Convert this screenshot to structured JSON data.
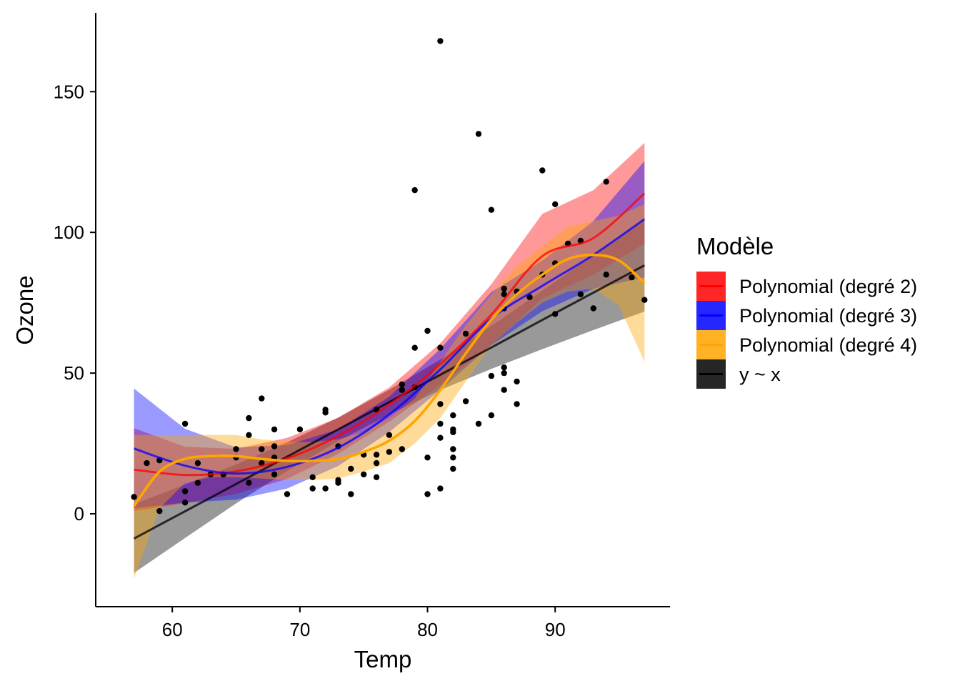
{
  "chart_data": {
    "type": "scatter",
    "xlabel": "Temp",
    "ylabel": "Ozone",
    "xlim": [
      54.0,
      99.0
    ],
    "ylim": [
      -33.0,
      178.0
    ],
    "xticks": [
      60,
      70,
      80,
      90
    ],
    "yticks": [
      0,
      50,
      100,
      150
    ],
    "xtick_labels": [
      "60",
      "70",
      "80",
      "90"
    ],
    "ytick_labels": [
      "0",
      "50",
      "100",
      "150"
    ],
    "grid": false,
    "legend": {
      "title": "Modèle",
      "placement": "right",
      "entries": [
        {
          "label": "Polynomial (degré 2)",
          "color": "#ff0000"
        },
        {
          "label": "Polynomial (degré 3)",
          "color": "#0000ff"
        },
        {
          "label": "Polynomial (degré 4)",
          "color": "#ffa500"
        },
        {
          "label": "y ~ x",
          "color": "#000000"
        }
      ]
    },
    "points": [
      [
        57,
        6
      ],
      [
        58,
        18
      ],
      [
        59,
        1
      ],
      [
        59,
        19
      ],
      [
        61,
        32
      ],
      [
        61,
        8
      ],
      [
        61,
        4
      ],
      [
        62,
        11
      ],
      [
        62,
        18
      ],
      [
        63,
        14
      ],
      [
        64,
        14
      ],
      [
        65,
        20
      ],
      [
        65,
        23
      ],
      [
        66,
        34
      ],
      [
        66,
        28
      ],
      [
        66,
        11
      ],
      [
        67,
        41
      ],
      [
        67,
        23
      ],
      [
        67,
        18
      ],
      [
        68,
        30
      ],
      [
        68,
        24
      ],
      [
        68,
        20
      ],
      [
        68,
        14
      ],
      [
        69,
        7
      ],
      [
        70,
        30
      ],
      [
        71,
        13
      ],
      [
        71,
        9
      ],
      [
        72,
        37
      ],
      [
        72,
        36
      ],
      [
        72,
        9
      ],
      [
        73,
        12
      ],
      [
        73,
        11
      ],
      [
        73,
        24
      ],
      [
        74,
        7
      ],
      [
        74,
        16
      ],
      [
        75,
        21
      ],
      [
        75,
        14
      ],
      [
        76,
        21
      ],
      [
        76,
        13
      ],
      [
        76,
        18
      ],
      [
        76,
        37
      ],
      [
        77,
        22
      ],
      [
        77,
        28
      ],
      [
        78,
        44
      ],
      [
        78,
        46
      ],
      [
        78,
        23
      ],
      [
        79,
        59
      ],
      [
        79,
        45
      ],
      [
        79,
        115
      ],
      [
        80,
        65
      ],
      [
        80,
        20
      ],
      [
        80,
        7
      ],
      [
        81,
        168
      ],
      [
        81,
        59
      ],
      [
        81,
        39
      ],
      [
        81,
        32
      ],
      [
        81,
        27
      ],
      [
        81,
        9
      ],
      [
        82,
        35
      ],
      [
        82,
        30
      ],
      [
        82,
        29
      ],
      [
        82,
        23
      ],
      [
        82,
        20
      ],
      [
        82,
        16
      ],
      [
        83,
        64
      ],
      [
        83,
        40
      ],
      [
        84,
        135
      ],
      [
        84,
        32
      ],
      [
        85,
        108
      ],
      [
        85,
        49
      ],
      [
        85,
        35
      ],
      [
        86,
        80
      ],
      [
        86,
        78
      ],
      [
        86,
        73
      ],
      [
        86,
        52
      ],
      [
        86,
        50
      ],
      [
        86,
        44
      ],
      [
        87,
        79
      ],
      [
        87,
        47
      ],
      [
        87,
        39
      ],
      [
        88,
        77
      ],
      [
        89,
        122
      ],
      [
        89,
        85
      ],
      [
        90,
        110
      ],
      [
        90,
        89
      ],
      [
        90,
        71
      ],
      [
        91,
        96
      ],
      [
        92,
        97
      ],
      [
        92,
        78
      ],
      [
        93,
        73
      ],
      [
        94,
        118
      ],
      [
        94,
        85
      ],
      [
        96,
        84
      ],
      [
        97,
        76
      ]
    ],
    "series": [
      {
        "name": "y ~ x",
        "color": "#000000",
        "x": [
          57,
          61,
          65,
          69,
          73,
          77,
          81,
          85,
          89,
          93,
          97
        ],
        "y": [
          -8.8,
          0.9,
          10.6,
          20.3,
          30.0,
          39.7,
          49.4,
          59.1,
          68.9,
          78.6,
          88.3
        ],
        "lower": [
          -21.0,
          -8.6,
          3.7,
          15.2,
          25.8,
          35.3,
          44.0,
          51.5,
          58.5,
          65.3,
          71.9
        ],
        "upper": [
          3.4,
          10.4,
          17.5,
          25.4,
          34.2,
          44.1,
          54.8,
          66.7,
          79.3,
          91.9,
          104.7
        ]
      },
      {
        "name": "Polynomial (degré 2)",
        "color": "#ff0000",
        "x": [
          57,
          61,
          65,
          69,
          73,
          77,
          81,
          85,
          89,
          93,
          97
        ],
        "y": [
          15.7,
          13.8,
          15.1,
          19.7,
          27.7,
          38.8,
          53.2,
          70.8,
          91.6,
          98.0,
          113.9
        ],
        "lower": [
          1.0,
          3.8,
          7.1,
          12.4,
          21.3,
          32.7,
          45.8,
          60.0,
          76.6,
          85.0,
          96.0
        ],
        "upper": [
          30.4,
          23.8,
          23.1,
          27.0,
          34.1,
          44.9,
          60.6,
          81.6,
          106.6,
          115.0,
          131.8
        ]
      },
      {
        "name": "Polynomial (degré 3)",
        "color": "#0000ff",
        "x": [
          57,
          61,
          65,
          69,
          73,
          77,
          81,
          85,
          89,
          93,
          97
        ],
        "y": [
          23.2,
          17.1,
          14.3,
          16.7,
          23.5,
          35.3,
          51.3,
          69.4,
          81.0,
          92.0,
          104.7
        ],
        "lower": [
          2.0,
          4.0,
          5.0,
          9.0,
          17.0,
          29.0,
          44.0,
          60.0,
          72.0,
          80.0,
          84.0
        ],
        "upper": [
          44.5,
          30.2,
          23.6,
          24.4,
          30.0,
          41.6,
          58.6,
          78.8,
          90.0,
          104.0,
          125.4
        ]
      },
      {
        "name": "Polynomial (degré 4)",
        "color": "#ffa500",
        "x": [
          57,
          59,
          61,
          63,
          65,
          67,
          69,
          71,
          73,
          75,
          77,
          79,
          81,
          83,
          85,
          87,
          89,
          91,
          93,
          95,
          97
        ],
        "y": [
          2.8,
          15.0,
          19.5,
          20.5,
          20.5,
          19.5,
          18.8,
          18.8,
          19.5,
          22.0,
          26.0,
          33.0,
          44.0,
          57.0,
          69.0,
          78.0,
          85.0,
          90.5,
          92.0,
          90.0,
          82.0
        ],
        "lower": [
          -23.0,
          2.0,
          11.0,
          13.0,
          13.0,
          12.5,
          12.0,
          12.0,
          12.5,
          15.0,
          18.0,
          25.0,
          34.0,
          47.0,
          60.0,
          68.0,
          75.0,
          79.0,
          80.0,
          74.0,
          54.0
        ],
        "upper": [
          28.0,
          28.0,
          28.0,
          28.0,
          28.0,
          26.5,
          25.5,
          25.5,
          26.5,
          29.0,
          34.0,
          41.0,
          54.0,
          67.0,
          78.0,
          88.0,
          95.0,
          102.0,
          104.0,
          106.0,
          110.0
        ]
      }
    ]
  }
}
